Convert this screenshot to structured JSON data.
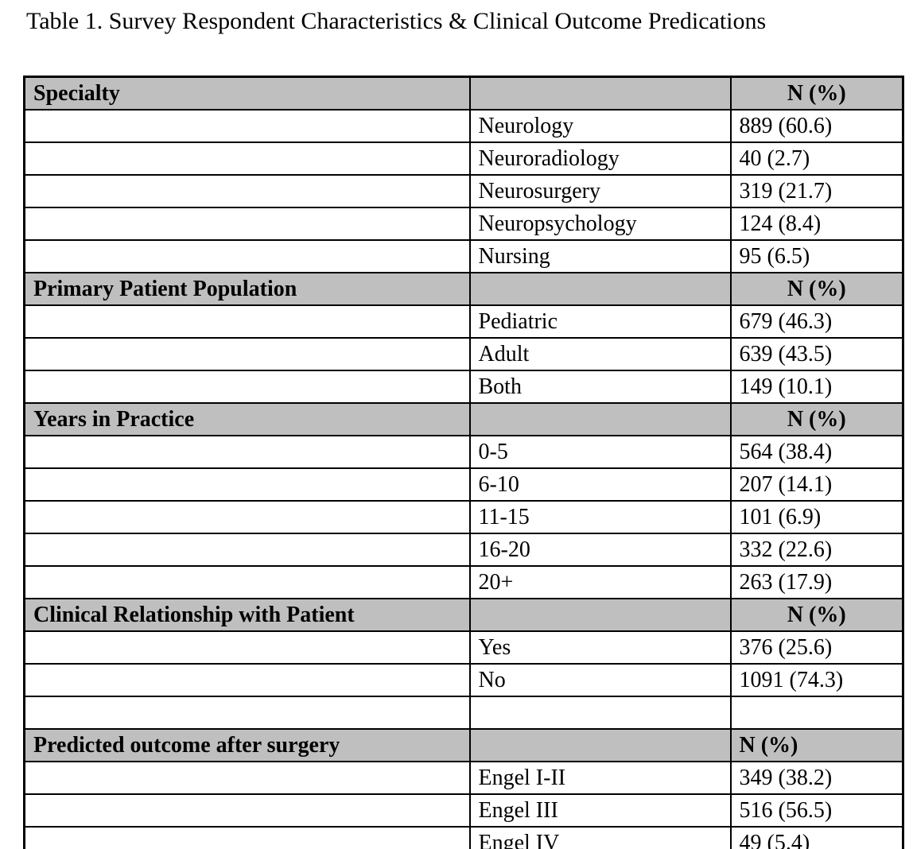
{
  "page": {
    "title": "Table 1. Survey Respondent Characteristics & Clinical Outcome Predications"
  },
  "colors": {
    "section_header_bg": "#bfbfbf",
    "border": "#000000",
    "background": "#ffffff"
  },
  "table": {
    "sections": [
      {
        "header": "Specialty",
        "value_header": "N (%)",
        "value_header_align": "center",
        "rows": [
          {
            "label": "Neurology",
            "value": "889 (60.6)"
          },
          {
            "label": "Neuroradiology",
            "value": "40 (2.7)"
          },
          {
            "label": "Neurosurgery",
            "value": "319 (21.7)"
          },
          {
            "label": "Neuropsychology",
            "value": "124 (8.4)"
          },
          {
            "label": "Nursing",
            "value": "95 (6.5)"
          }
        ]
      },
      {
        "header": "Primary Patient Population",
        "value_header": "N (%)",
        "value_header_align": "center",
        "rows": [
          {
            "label": "Pediatric",
            "value": "679 (46.3)"
          },
          {
            "label": "Adult",
            "value": "639 (43.5)"
          },
          {
            "label": "Both",
            "value": "149 (10.1)"
          }
        ]
      },
      {
        "header": "Years in Practice",
        "value_header": "N (%)",
        "value_header_align": "center",
        "rows": [
          {
            "label": "0-5",
            "value": "564 (38.4)"
          },
          {
            "label": "6-10",
            "value": "207 (14.1)"
          },
          {
            "label": "11-15",
            "value": "101 (6.9)"
          },
          {
            "label": "16-20",
            "value": "332 (22.6)"
          },
          {
            "label": "20+",
            "value": "263 (17.9)"
          }
        ]
      },
      {
        "header": "Clinical Relationship with Patient",
        "value_header": "N (%)",
        "value_header_align": "center",
        "rows": [
          {
            "label": "Yes",
            "value": "376 (25.6)"
          },
          {
            "label": "No",
            "value": "1091 (74.3)"
          },
          {
            "label": "",
            "value": ""
          }
        ]
      },
      {
        "header": "Predicted outcome after surgery",
        "value_header": "N (%)",
        "value_header_align": "left",
        "rows": [
          {
            "label": "Engel I-II",
            "value": "349 (38.2)"
          },
          {
            "label": "Engel III",
            "value": "516 (56.5)"
          },
          {
            "label": "Engel IV",
            "value": "49 (5.4)"
          }
        ]
      }
    ]
  }
}
